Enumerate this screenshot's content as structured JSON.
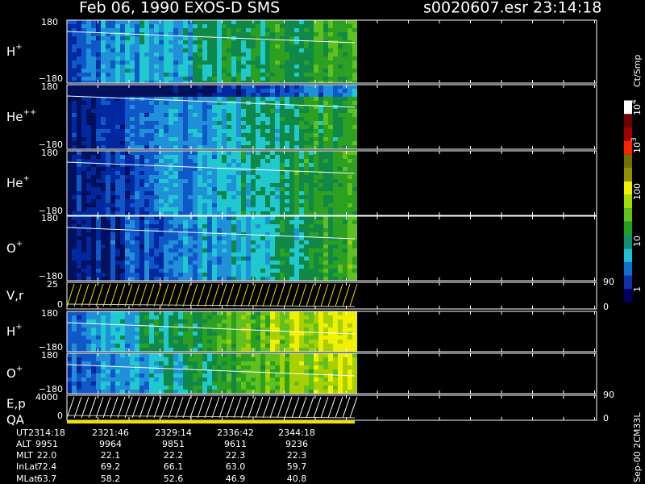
{
  "header": {
    "title": "Feb 06, 1990    EXOS-D SMS",
    "file": "s0020607.esr  23:14:18"
  },
  "panels": [
    {
      "base": "H",
      "sup": "+",
      "top": "180",
      "bottom": "−180"
    },
    {
      "base": "He",
      "sup": "++",
      "top": "180",
      "bottom": "−180"
    },
    {
      "base": "He",
      "sup": "+",
      "top": "180",
      "bottom": "−180"
    },
    {
      "base": "O",
      "sup": "+",
      "top": "180",
      "bottom": "−180"
    },
    {
      "base": "V,r",
      "sup": "",
      "top": "25",
      "bottom": "0",
      "right_top": "90",
      "right_bottom": "0"
    },
    {
      "base": "H",
      "sup": "+",
      "top": "180",
      "bottom": "−180"
    },
    {
      "base": "O",
      "sup": "+",
      "top": "180",
      "bottom": "−180"
    },
    {
      "base": "E,p",
      "sup": "",
      "base2": "QA",
      "top": "4000",
      "bottom": "0",
      "right_top": "90",
      "right_bottom": "0"
    }
  ],
  "colorbar": {
    "unit": "Ct/Smp",
    "labels": [
      {
        "base": "10",
        "sup": "4"
      },
      {
        "base": "10",
        "sup": "3"
      },
      {
        "base": "100",
        "sup": ""
      },
      {
        "base": "10",
        "sup": ""
      },
      {
        "base": "1",
        "sup": ""
      }
    ]
  },
  "footer": {
    "row_labels": [
      "UT",
      "ALT",
      "MLT",
      "InLat",
      "MLat"
    ],
    "rows": [
      [
        "2314:18",
        "2321:46",
        "2329:14",
        "2336:42",
        "2344:18"
      ],
      [
        "9951",
        "9964",
        "9851",
        "9611",
        "9236"
      ],
      [
        "22.0",
        "22.1",
        "22.2",
        "22.3",
        "22.3"
      ],
      [
        "72.4",
        "69.2",
        "66.1",
        "63.0",
        "59.7"
      ],
      [
        "63.7",
        "58.2",
        "52.6",
        "46.9",
        "40.8"
      ]
    ]
  },
  "stamp": "Sep-00 2CM33L"
}
